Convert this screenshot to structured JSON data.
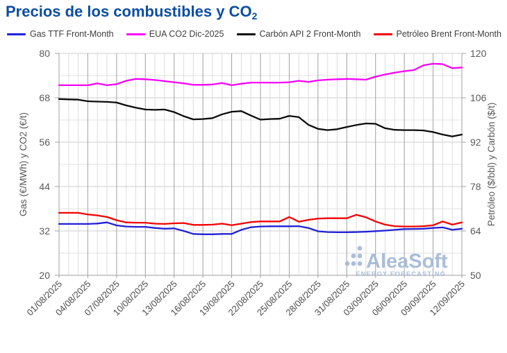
{
  "title": {
    "text": "Precios de los combustibles y CO",
    "subscript": "2"
  },
  "legend": [
    {
      "label": "Gas TTF Front-Month",
      "color": "#2020d8"
    },
    {
      "label": "EUA CO2 Dic-2025",
      "color": "#fb00fb"
    },
    {
      "label": "Carbón API 2 Front-Month",
      "color": "#0a0a0a"
    },
    {
      "label": "Petróleo Brent Front-Month",
      "color": "#f40000"
    }
  ],
  "watermark": {
    "name": "AleaSoft",
    "tagline": "ENERGY FORECASTING",
    "color": "#a3b8d6"
  },
  "colors": {
    "title": "#0b4ea2",
    "tick_label": "#595959",
    "x_label": "#4a4a4a",
    "axis_title": "#595959",
    "grid_minor": "#e0e0e0",
    "grid_major_h": "#cccccc",
    "grid_minor_v": "#dcdcdc",
    "grid_major_v": "#a0a0a0",
    "axis_line": "#b0b0b0"
  },
  "chart_data": {
    "type": "line",
    "x": [
      "01/08/2025",
      "02/08/2025",
      "03/08/2025",
      "04/08/2025",
      "05/08/2025",
      "06/08/2025",
      "07/08/2025",
      "08/08/2025",
      "09/08/2025",
      "10/08/2025",
      "11/08/2025",
      "12/08/2025",
      "13/08/2025",
      "14/08/2025",
      "15/08/2025",
      "16/08/2025",
      "17/08/2025",
      "18/08/2025",
      "19/08/2025",
      "20/08/2025",
      "21/08/2025",
      "22/08/2025",
      "23/08/2025",
      "24/08/2025",
      "25/08/2025",
      "26/08/2025",
      "27/08/2025",
      "28/08/2025",
      "29/08/2025",
      "30/08/2025",
      "31/08/2025",
      "01/09/2025",
      "02/09/2025",
      "03/09/2025",
      "04/09/2025",
      "05/09/2025",
      "06/09/2025",
      "07/09/2025",
      "08/09/2025",
      "09/09/2025",
      "10/09/2025",
      "11/09/2025",
      "12/09/2025"
    ],
    "x_tick_every": 3,
    "x_tick_labels": [
      "01/08/2025",
      "04/08/2025",
      "07/08/2025",
      "10/08/2025",
      "13/08/2025",
      "16/08/2025",
      "19/08/2025",
      "22/08/2025",
      "25/08/2025",
      "28/08/2025",
      "31/08/2025",
      "03/09/2025",
      "06/09/2025",
      "09/09/2025",
      "12/09/2025"
    ],
    "left_axis": {
      "label": "Gas (€/MWh) y CO2 (€/t)",
      "min": 20,
      "max": 80,
      "ticks": [
        20,
        32,
        44,
        56,
        68,
        80
      ],
      "minor": [
        26,
        38,
        50,
        62,
        74
      ]
    },
    "right_axis": {
      "label": "Petróleo ($/bbl) y Carbón ($/t)",
      "min": 50,
      "max": 120,
      "ticks": [
        50,
        64,
        78,
        92,
        106,
        120
      ]
    },
    "series": [
      {
        "name": "Gas TTF Front-Month",
        "axis": "left",
        "color": "#2020d8",
        "values": [
          33.9,
          33.9,
          33.9,
          33.9,
          34.0,
          34.3,
          33.5,
          33.2,
          33.1,
          33.1,
          32.8,
          32.6,
          32.7,
          32.0,
          31.2,
          31.1,
          31.1,
          31.2,
          31.2,
          32.3,
          33.0,
          33.2,
          33.25,
          33.25,
          33.25,
          33.3,
          32.8,
          31.9,
          31.7,
          31.65,
          31.65,
          31.7,
          31.8,
          31.95,
          32.1,
          32.3,
          32.5,
          32.55,
          32.6,
          32.8,
          32.95,
          32.3,
          32.6
        ]
      },
      {
        "name": "EUA CO2 Dic-2025",
        "axis": "left",
        "color": "#fb00fb",
        "values": [
          71.4,
          71.4,
          71.4,
          71.4,
          71.9,
          71.4,
          71.7,
          72.6,
          73.1,
          73.0,
          72.8,
          72.5,
          72.2,
          71.9,
          71.5,
          71.5,
          71.6,
          72.0,
          71.4,
          71.8,
          72.1,
          72.1,
          72.1,
          72.1,
          72.2,
          72.6,
          72.3,
          72.7,
          72.9,
          73.0,
          73.1,
          73.0,
          72.9,
          73.7,
          74.3,
          74.8,
          75.2,
          75.5,
          76.8,
          77.2,
          77.1,
          76.0,
          76.2
        ]
      },
      {
        "name": "Carbón API 2 Front-Month",
        "axis": "right",
        "color": "#0a0a0a",
        "values": [
          105.6,
          105.5,
          105.4,
          104.9,
          104.8,
          104.7,
          104.5,
          103.6,
          102.9,
          102.3,
          102.2,
          102.3,
          101.5,
          100.2,
          99.2,
          99.3,
          99.6,
          100.8,
          101.6,
          101.8,
          100.4,
          99.1,
          99.3,
          99.4,
          100.3,
          99.9,
          97.5,
          96.2,
          95.8,
          96.1,
          96.8,
          97.4,
          97.9,
          97.8,
          96.4,
          95.9,
          95.8,
          95.8,
          95.7,
          95.2,
          94.4,
          93.8,
          94.4
        ]
      },
      {
        "name": "Petróleo Brent Front-Month",
        "axis": "right",
        "color": "#f40000",
        "values": [
          69.7,
          69.7,
          69.7,
          69.2,
          68.9,
          68.4,
          67.4,
          66.7,
          66.6,
          66.6,
          66.3,
          66.2,
          66.4,
          66.5,
          65.9,
          65.9,
          66.0,
          66.3,
          65.8,
          66.3,
          66.8,
          67.0,
          67.0,
          67.0,
          68.4,
          66.9,
          67.5,
          67.9,
          68.0,
          68.0,
          68.0,
          69.1,
          68.3,
          67.0,
          66.0,
          65.5,
          65.4,
          65.4,
          65.5,
          65.8,
          67.0,
          66.0,
          66.7
        ]
      }
    ]
  }
}
